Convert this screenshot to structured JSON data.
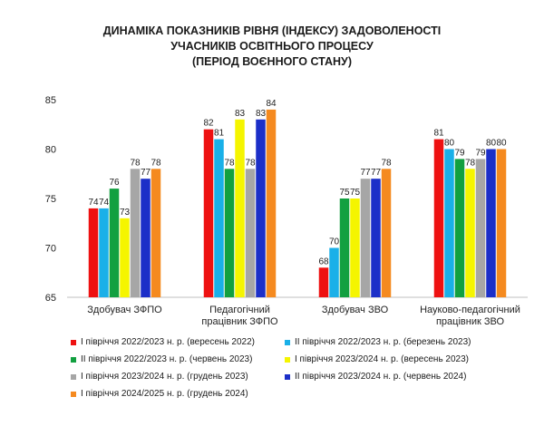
{
  "title_lines": [
    "ДИНАМІКА ПОКАЗНИКІВ РІВНЯ (ІНДЕКСУ) ЗАДОВОЛЕНОСТІ",
    "УЧАСНИКІВ ОСВІТНЬОГО ПРОЦЕСУ",
    "(ПЕРІОД ВОЄННОГО СТАНУ)"
  ],
  "chart_data": {
    "type": "bar",
    "title": "ДИНАМІКА ПОКАЗНИКІВ РІВНЯ (ІНДЕКСУ) ЗАДОВОЛЕНОСТІ УЧАСНИКІВ ОСВІТНЬОГО ПРОЦЕСУ (ПЕРІОД ВОЄННОГО СТАНУ)",
    "categories": [
      [
        "Здобувач ЗФПО"
      ],
      [
        "Педагогічний",
        "працівник ЗФПО"
      ],
      [
        "Здобувач ЗВО"
      ],
      [
        "Науково-педагогічний",
        "працівник ЗВО"
      ]
    ],
    "ylim": [
      65,
      85
    ],
    "yticks": [
      65,
      70,
      75,
      80,
      85
    ],
    "grid": false,
    "legend_position": "bottom",
    "series": [
      {
        "name": "І півріччя 2022/2023 н. р. (вересень 2022)",
        "color": "#ee1111",
        "values": [
          74,
          82,
          68,
          81
        ]
      },
      {
        "name": "ІІ півріччя 2022/2023 н. р. (березень 2023)",
        "color": "#1ab0e8",
        "values": [
          74,
          81,
          70,
          80
        ]
      },
      {
        "name": "ІІ півріччя 2022/2023 н. р. (червень 2023)",
        "color": "#12a040",
        "values": [
          76,
          78,
          75,
          79
        ]
      },
      {
        "name": "І півріччя 2023/2024 н. р. (вересень 2023)",
        "color": "#f5f500",
        "values": [
          73,
          83,
          75,
          78
        ]
      },
      {
        "name": "І півріччя 2023/2024 н. р. (грудень 2023)",
        "color": "#a6a6a6",
        "values": [
          78,
          78,
          77,
          79
        ]
      },
      {
        "name": "ІІ півріччя 2023/2024 н. р. (червень 2024)",
        "color": "#1c2fc8",
        "values": [
          77,
          83,
          77,
          80
        ]
      },
      {
        "name": "І півріччя 2024/2025 н. р. (грудень 2024)",
        "color": "#f58a1f",
        "values": [
          78,
          84,
          78,
          80
        ]
      }
    ]
  }
}
